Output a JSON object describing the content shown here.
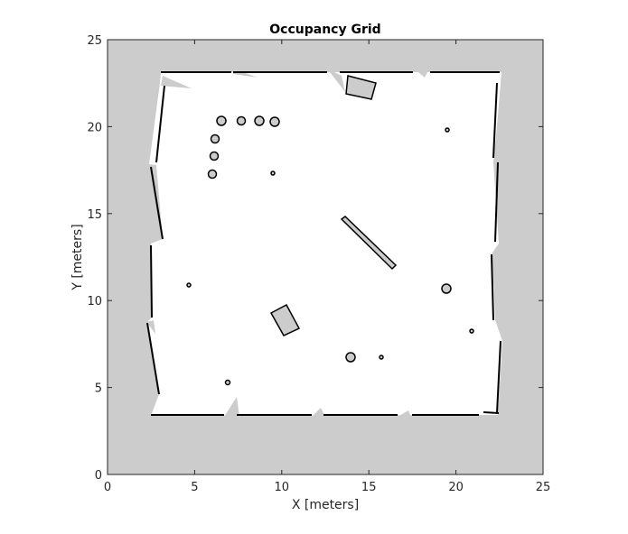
{
  "chart_data": {
    "type": "occupancy-grid",
    "title": "Occupancy Grid",
    "xlabel": "X [meters]",
    "ylabel": "Y [meters]",
    "xlim": [
      0,
      25
    ],
    "ylim": [
      0,
      25
    ],
    "xticks": [
      "0",
      "5",
      "10",
      "15",
      "20",
      "25"
    ],
    "yticks": [
      "0",
      "5",
      "10",
      "15",
      "20",
      "25"
    ],
    "grid": false,
    "colors": {
      "unknown": "#cccccc",
      "free": "#ffffff",
      "occupied": "#000000"
    }
  }
}
